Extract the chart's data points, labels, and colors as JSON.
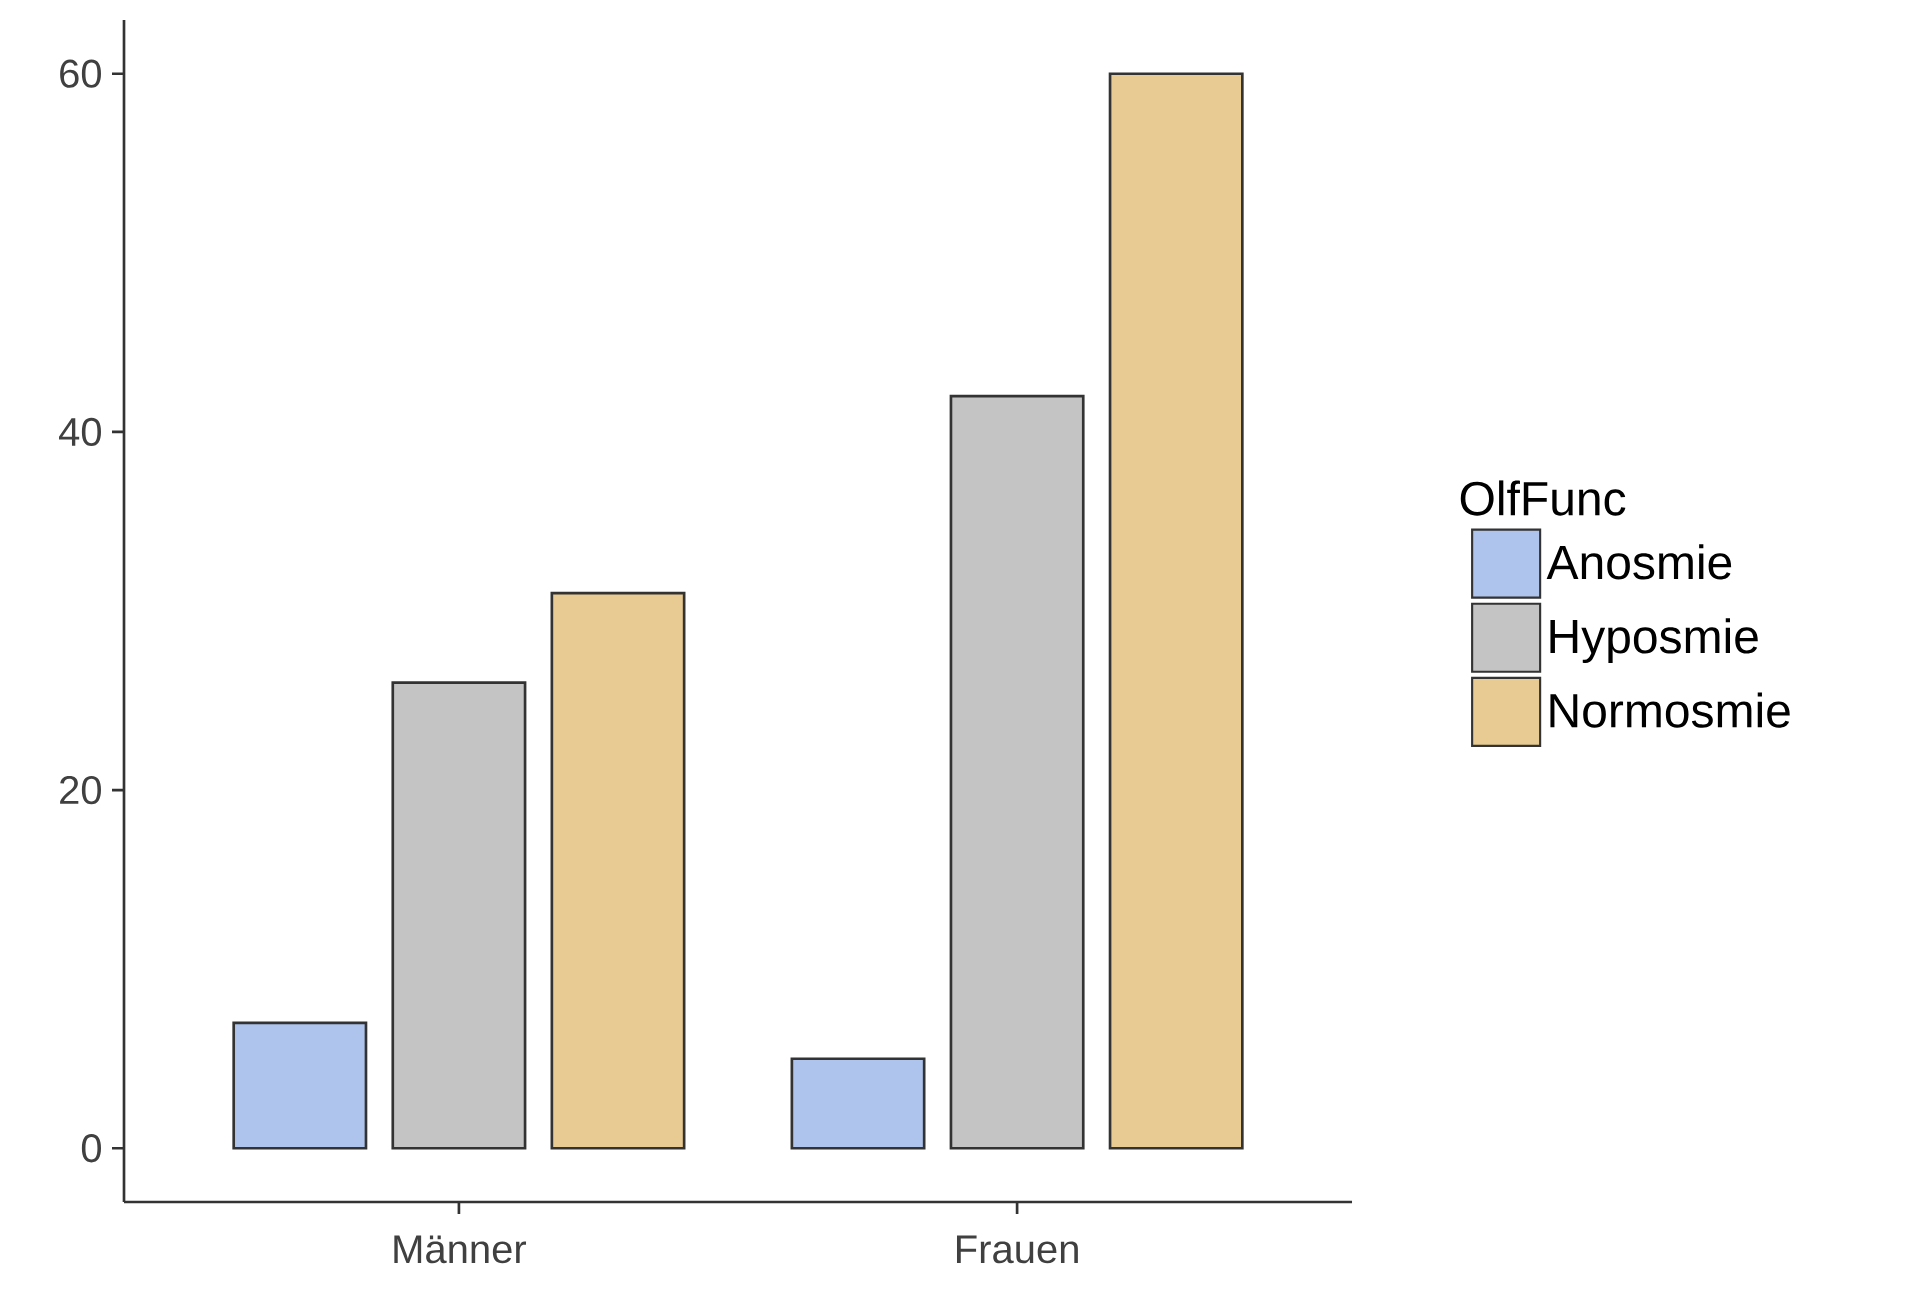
{
  "chart_data": {
    "type": "bar",
    "categories": [
      "Männer",
      "Frauen"
    ],
    "legend_title": "OlfFunc",
    "series": [
      {
        "name": "Anosmie",
        "color": "#aec4ec",
        "values": [
          7,
          5
        ]
      },
      {
        "name": "Hyposmie",
        "color": "#c4c4c4",
        "values": [
          26,
          42
        ]
      },
      {
        "name": "Normosmie",
        "color": "#e8cb93",
        "values": [
          31,
          60
        ]
      }
    ],
    "ylim": [
      -3,
      63
    ],
    "yticks": [
      0,
      20,
      40,
      60
    ],
    "legend": "right"
  }
}
